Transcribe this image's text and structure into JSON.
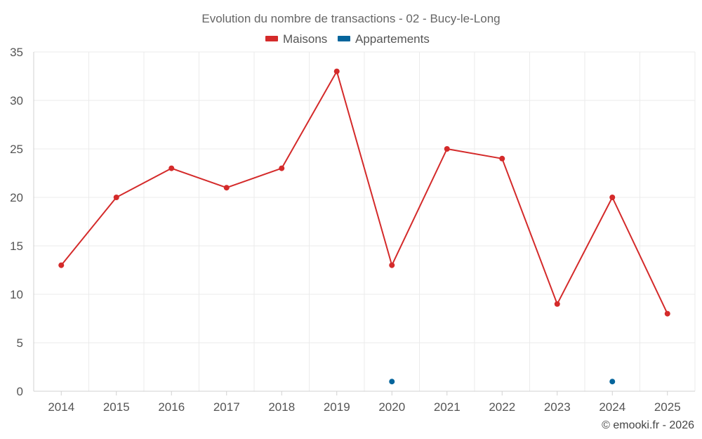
{
  "chart_data": {
    "type": "line",
    "title": "Evolution du nombre de transactions - 02 - Bucy-le-Long",
    "categories": [
      "2014",
      "2015",
      "2016",
      "2017",
      "2018",
      "2019",
      "2020",
      "2021",
      "2022",
      "2023",
      "2024",
      "2025"
    ],
    "ylim": [
      0,
      35
    ],
    "yticks": [
      0,
      5,
      10,
      15,
      20,
      25,
      30,
      35
    ],
    "grid": true,
    "legend_position": "top-center",
    "series": [
      {
        "name": "Maisons",
        "color": "#d42a2a",
        "line": true,
        "values": [
          13,
          20,
          23,
          21,
          23,
          33,
          13,
          25,
          24,
          9,
          20,
          8
        ]
      },
      {
        "name": "Appartements",
        "color": "#05659c",
        "line": false,
        "values": [
          null,
          null,
          null,
          null,
          null,
          null,
          1,
          null,
          null,
          null,
          1,
          null
        ]
      }
    ],
    "credit": "© emooki.fr - 2026"
  }
}
